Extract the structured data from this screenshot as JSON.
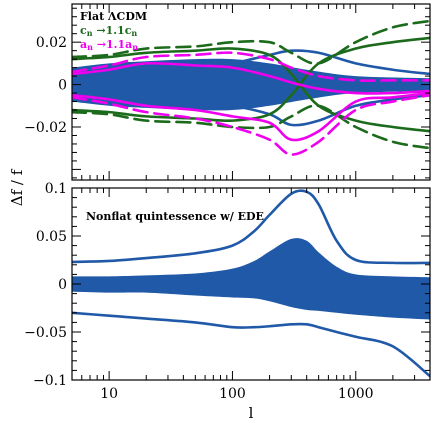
{
  "chart_data": [
    {
      "type": "line",
      "panel": "top",
      "xscale": "log",
      "xlim": [
        5,
        4000
      ],
      "ylim": [
        -0.045,
        0.038
      ],
      "yticks": [
        -0.02,
        0,
        0.02
      ],
      "ytick_labels": [
        "−0.02",
        "0",
        "0.02"
      ],
      "legend_placement": "top-left",
      "title": "Flat ΛCDM",
      "legend": [
        {
          "base": "c",
          "sub": "n",
          "rest": " →1.1c",
          "sub2": "n",
          "color": "#1c6b1c"
        },
        {
          "base": "a",
          "sub": "n",
          "rest": " →1.1a",
          "sub2": "n",
          "color": "#ee00ee"
        }
      ],
      "band": {
        "color": "#2059a8",
        "x": [
          5,
          10,
          20,
          50,
          100,
          200,
          400,
          1000,
          4000
        ],
        "upper": [
          0.008,
          0.01,
          0.011,
          0.012,
          0.012,
          0.01,
          0.007,
          0.004,
          0.003
        ],
        "lower": [
          -0.008,
          -0.01,
          -0.011,
          -0.012,
          -0.012,
          -0.01,
          -0.007,
          -0.004,
          -0.003
        ]
      },
      "series": [
        {
          "color": "#2059a8",
          "style": "solid",
          "x": [
            5,
            10,
            20,
            50,
            100,
            200,
            300,
            500,
            1000,
            2000,
            4000
          ],
          "y": [
            0.003,
            0.005,
            0.006,
            0.008,
            0.01,
            0.014,
            0.016,
            0.015,
            0.01,
            0.007,
            0.005
          ]
        },
        {
          "color": "#2059a8",
          "style": "solid",
          "x": [
            5,
            10,
            20,
            50,
            100,
            200,
            300,
            500,
            1000,
            2000,
            4000
          ],
          "y": [
            -0.003,
            -0.005,
            -0.006,
            -0.008,
            -0.01,
            -0.014,
            -0.019,
            -0.017,
            -0.01,
            -0.007,
            -0.005
          ]
        },
        {
          "color": "#1c6b1c",
          "style": "solid",
          "x": [
            5,
            10,
            20,
            50,
            100,
            200,
            300,
            500,
            1000,
            2000,
            4000
          ],
          "y": [
            0.012,
            0.013,
            0.015,
            0.016,
            0.017,
            0.014,
            0.005,
            -0.01,
            -0.017,
            -0.02,
            -0.022
          ]
        },
        {
          "color": "#1c6b1c",
          "style": "solid",
          "x": [
            5,
            10,
            20,
            50,
            100,
            200,
            300,
            500,
            1000,
            2000,
            4000
          ],
          "y": [
            -0.012,
            -0.013,
            -0.015,
            -0.016,
            -0.017,
            -0.014,
            -0.005,
            0.01,
            0.017,
            0.02,
            0.022
          ]
        },
        {
          "color": "#1c6b1c",
          "style": "dashed",
          "x": [
            5,
            10,
            20,
            50,
            100,
            200,
            300,
            500,
            1000,
            2000,
            4000
          ],
          "y": [
            0.013,
            0.014,
            0.017,
            0.018,
            0.02,
            0.02,
            0.015,
            0.01,
            0.02,
            0.027,
            0.03
          ]
        },
        {
          "color": "#1c6b1c",
          "style": "dashed",
          "x": [
            5,
            10,
            20,
            50,
            100,
            200,
            300,
            500,
            1000,
            2000,
            4000
          ],
          "y": [
            -0.013,
            -0.014,
            -0.017,
            -0.018,
            -0.02,
            -0.02,
            -0.015,
            -0.01,
            -0.02,
            -0.027,
            -0.03
          ]
        },
        {
          "color": "#ee00ee",
          "style": "solid",
          "x": [
            5,
            10,
            20,
            50,
            100,
            200,
            300,
            500,
            1000,
            2000,
            4000
          ],
          "y": [
            0.005,
            0.007,
            0.01,
            0.009,
            0.008,
            0.004,
            0.001,
            -0.002,
            -0.004,
            -0.004,
            -0.003
          ]
        },
        {
          "color": "#ee00ee",
          "style": "solid",
          "x": [
            5,
            10,
            20,
            50,
            100,
            200,
            300,
            500,
            1000,
            2000,
            4000
          ],
          "y": [
            -0.005,
            -0.007,
            -0.01,
            -0.012,
            -0.015,
            -0.018,
            -0.026,
            -0.022,
            -0.008,
            -0.006,
            -0.004
          ]
        },
        {
          "color": "#ee00ee",
          "style": "dashed",
          "x": [
            5,
            10,
            20,
            50,
            100,
            200,
            300,
            500,
            1000,
            2000,
            4000
          ],
          "y": [
            0.006,
            0.009,
            0.013,
            0.014,
            0.015,
            0.012,
            0.008,
            0.004,
            0.002,
            0.002,
            0.002
          ]
        },
        {
          "color": "#ee00ee",
          "style": "dashed",
          "x": [
            5,
            10,
            20,
            50,
            100,
            200,
            300,
            500,
            1000,
            2000,
            4000
          ],
          "y": [
            -0.006,
            -0.009,
            -0.013,
            -0.016,
            -0.02,
            -0.026,
            -0.033,
            -0.027,
            -0.012,
            -0.008,
            -0.005
          ]
        }
      ]
    },
    {
      "type": "line",
      "panel": "bottom",
      "xscale": "log",
      "xlim": [
        5,
        4000
      ],
      "ylim": [
        -0.1,
        0.1
      ],
      "yticks": [
        -0.1,
        -0.05,
        0,
        0.05,
        0.1
      ],
      "ytick_labels": [
        "−0.1",
        "−0.05",
        "0",
        "0.05",
        "0.1"
      ],
      "xticks": [
        10,
        100,
        1000
      ],
      "xtick_labels": [
        "10",
        "100",
        "1000"
      ],
      "xlabel": "l",
      "ylabel": "Δf / f",
      "title": "Nonflat quintessence w/ EDE",
      "band": {
        "color": "#2059a8",
        "x": [
          5,
          10,
          20,
          50,
          100,
          150,
          200,
          300,
          400,
          500,
          700,
          1000,
          2000,
          4000
        ],
        "upper": [
          0.008,
          0.008,
          0.009,
          0.011,
          0.016,
          0.024,
          0.034,
          0.047,
          0.045,
          0.033,
          0.018,
          0.01,
          0.008,
          0.007
        ],
        "lower": [
          -0.008,
          -0.009,
          -0.009,
          -0.012,
          -0.014,
          -0.015,
          -0.018,
          -0.024,
          -0.027,
          -0.028,
          -0.03,
          -0.032,
          -0.035,
          -0.037
        ]
      },
      "series": [
        {
          "color": "#2059a8",
          "style": "solid",
          "x": [
            5,
            10,
            20,
            50,
            100,
            150,
            200,
            300,
            400,
            500,
            700,
            1000,
            2000,
            4000
          ],
          "y": [
            0.023,
            0.024,
            0.027,
            0.032,
            0.04,
            0.055,
            0.072,
            0.094,
            0.096,
            0.083,
            0.045,
            0.025,
            0.022,
            0.022
          ]
        },
        {
          "color": "#2059a8",
          "style": "solid",
          "x": [
            5,
            10,
            20,
            50,
            100,
            150,
            200,
            300,
            400,
            500,
            700,
            1000,
            2000,
            4000
          ],
          "y": [
            -0.03,
            -0.033,
            -0.036,
            -0.04,
            -0.045,
            -0.045,
            -0.044,
            -0.042,
            -0.042,
            -0.045,
            -0.05,
            -0.055,
            -0.065,
            -0.096
          ]
        }
      ]
    }
  ]
}
